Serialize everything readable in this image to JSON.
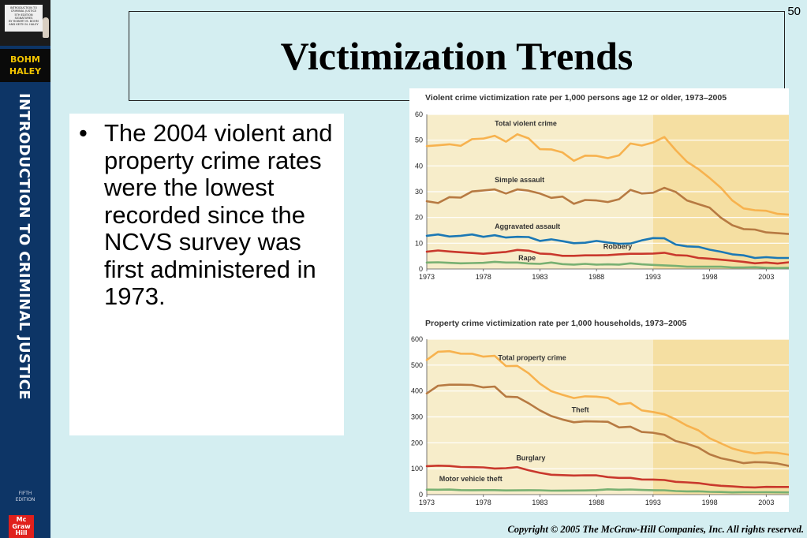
{
  "sidebar": {
    "cover_lines": [
      "INTRODUCTION TO",
      "CRIMINAL JUSTICE",
      "5TH EDITION",
      "SIGNATURES",
      "BY ROBERT M. BOHM",
      "AND KEITH N. HALEY"
    ],
    "authors_line1": "BOHM",
    "authors_line2": "HALEY",
    "vertical_title": "INTRODUCTION TO CRIMINAL JUSTICE",
    "edition_line1": "FIFTH",
    "edition_line2": "EDITION",
    "publisher_logo": [
      "Mc",
      "Graw",
      "Hill"
    ]
  },
  "slide": {
    "number": "50",
    "title": "Victimization Trends",
    "bullet": "The 2004 violent and property crime rates were the lowest recorded since the NCVS survey was first administered in 1973.",
    "copyright": "Copyright © 2005 The McGraw-Hill Companies, Inc. All rights reserved."
  },
  "colors": {
    "sidebar": "#0d3566",
    "background": "#d4eef1",
    "plot_light": "#f7edca",
    "plot_dark": "#f5dfa2",
    "total": "#f7b24e",
    "second": "#b77a42",
    "third": "#1b78b5",
    "fourth": "#c9382c",
    "fifth": "#78b072"
  },
  "chart_data": [
    {
      "type": "line",
      "title": "Violent crime victimization rate per 1,000 persons age 12 or older, 1973–2005",
      "xlabel": "",
      "ylabel": "",
      "xlim": [
        1973,
        2005
      ],
      "ylim": [
        0,
        60
      ],
      "yticks": [
        0,
        10,
        20,
        30,
        40,
        50,
        60
      ],
      "xticks": [
        1973,
        1978,
        1983,
        1988,
        1993,
        1998,
        2003
      ],
      "shaded_from": 1993,
      "grid": true,
      "x": [
        1973,
        1974,
        1975,
        1976,
        1977,
        1978,
        1979,
        1980,
        1981,
        1982,
        1983,
        1984,
        1985,
        1986,
        1987,
        1988,
        1989,
        1990,
        1991,
        1992,
        1993,
        1994,
        1995,
        1996,
        1997,
        1998,
        1999,
        2000,
        2001,
        2002,
        2003,
        2004,
        2005
      ],
      "series": [
        {
          "name": "Total violent crime",
          "color_key": "total",
          "label_at": [
            1979,
            55.5
          ],
          "values": [
            47.7,
            48.0,
            48.4,
            47.8,
            50.4,
            50.6,
            51.7,
            49.4,
            52.3,
            50.7,
            46.5,
            46.4,
            45.2,
            42.0,
            44.0,
            43.9,
            43.0,
            44.1,
            48.7,
            47.9,
            49.1,
            51.2,
            46.1,
            41.6,
            38.8,
            35.3,
            31.5,
            26.6,
            23.5,
            22.8,
            22.6,
            21.4,
            21.1
          ]
        },
        {
          "name": "Simple assault",
          "color_key": "second",
          "label_at": [
            1979,
            33.6
          ],
          "values": [
            26.3,
            25.6,
            27.9,
            27.7,
            30.1,
            30.5,
            30.9,
            29.3,
            30.9,
            30.4,
            29.3,
            27.6,
            28.1,
            25.3,
            26.8,
            26.6,
            26.0,
            27.1,
            30.7,
            29.3,
            29.6,
            31.5,
            29.9,
            26.6,
            25.2,
            23.8,
            19.9,
            17.0,
            15.5,
            15.3,
            14.2,
            13.9,
            13.6
          ]
        },
        {
          "name": "Aggravated assault",
          "color_key": "third",
          "label_at": [
            1979,
            15.6
          ],
          "values": [
            12.9,
            13.4,
            12.6,
            12.9,
            13.4,
            12.5,
            13.1,
            12.2,
            12.5,
            12.4,
            10.9,
            11.5,
            10.8,
            10.0,
            10.2,
            10.9,
            10.3,
            9.8,
            9.9,
            11.1,
            12.0,
            11.9,
            9.5,
            8.8,
            8.6,
            7.5,
            6.7,
            5.7,
            5.3,
            4.3,
            4.6,
            4.3,
            4.3
          ]
        },
        {
          "name": "Robbery",
          "color_key": "fourth",
          "label_at": [
            1988.6,
            7.8
          ],
          "values": [
            6.7,
            7.2,
            6.8,
            6.5,
            6.2,
            5.9,
            6.3,
            6.6,
            7.4,
            7.1,
            6.0,
            5.8,
            5.1,
            5.1,
            5.3,
            5.3,
            5.4,
            5.7,
            5.9,
            5.9,
            6.0,
            6.3,
            5.4,
            5.2,
            4.3,
            4.0,
            3.6,
            3.2,
            2.8,
            2.2,
            2.5,
            2.1,
            2.6
          ]
        },
        {
          "name": "Rape",
          "color_key": "fifth",
          "label_at": [
            1981.1,
            3.4
          ],
          "values": [
            2.5,
            2.6,
            2.4,
            2.2,
            2.3,
            2.4,
            2.8,
            2.5,
            2.5,
            2.1,
            2.0,
            2.5,
            1.9,
            1.7,
            2.0,
            1.7,
            1.8,
            1.7,
            2.2,
            1.8,
            1.6,
            1.4,
            1.2,
            0.9,
            0.9,
            0.9,
            0.9,
            0.6,
            0.6,
            0.7,
            0.5,
            0.4,
            0.5
          ]
        }
      ]
    },
    {
      "type": "line",
      "title": "Property crime victimization rate per 1,000 households, 1973–2005",
      "xlabel": "",
      "ylabel": "",
      "xlim": [
        1973,
        2005
      ],
      "ylim": [
        0,
        600
      ],
      "yticks": [
        0,
        100,
        200,
        300,
        400,
        500,
        600
      ],
      "xticks": [
        1973,
        1978,
        1983,
        1988,
        1993,
        1998,
        2003
      ],
      "shaded_from": 1993,
      "grid": true,
      "x": [
        1973,
        1974,
        1975,
        1976,
        1977,
        1978,
        1979,
        1980,
        1981,
        1982,
        1983,
        1984,
        1985,
        1986,
        1987,
        1988,
        1989,
        1990,
        1991,
        1992,
        1993,
        1994,
        1995,
        1996,
        1997,
        1998,
        1999,
        2000,
        2001,
        2002,
        2003,
        2004,
        2005
      ],
      "series": [
        {
          "name": "Total property crime",
          "color_key": "total",
          "label_at": [
            1979.3,
            520
          ],
          "values": [
            519.9,
            551.5,
            553.6,
            544.2,
            544.1,
            532.6,
            535.7,
            496.1,
            497.2,
            468.3,
            428.4,
            399.2,
            385.4,
            372.7,
            379.6,
            378.4,
            373.4,
            348.9,
            353.7,
            325.3,
            318.9,
            310.2,
            290.5,
            266.3,
            248.3,
            217.4,
            198.0,
            178.1,
            166.9,
            159.0,
            163.2,
            161.1,
            154.0
          ]
        },
        {
          "name": "Theft",
          "color_key": "second",
          "label_at": [
            1985.8,
            318
          ],
          "values": [
            390.8,
            420.2,
            424.4,
            424.2,
            423.4,
            414.0,
            417.3,
            378.3,
            376.5,
            352.7,
            325.4,
            303.5,
            289.8,
            279.4,
            282.9,
            282.3,
            281.2,
            259.4,
            262.3,
            241.9,
            238.7,
            230.8,
            206.9,
            196.3,
            181.4,
            155.5,
            140.3,
            131.5,
            121.5,
            125.4,
            124.4,
            120.0,
            111.0
          ]
        },
        {
          "name": "Burglary",
          "color_key": "fourth",
          "label_at": [
            1980.9,
            132
          ],
          "values": [
            110.0,
            111.8,
            110.5,
            106.6,
            106.0,
            105.2,
            100.7,
            101.9,
            105.9,
            94.1,
            84.0,
            76.9,
            75.2,
            73.8,
            74.6,
            74.3,
            67.7,
            64.5,
            64.6,
            58.6,
            58.2,
            56.3,
            49.3,
            47.2,
            44.6,
            38.5,
            34.1,
            31.8,
            28.7,
            27.7,
            29.8,
            29.6,
            29.5
          ]
        },
        {
          "name": "Motor vehicle theft",
          "color_key": "fifth",
          "label_at": [
            1974.1,
            52
          ],
          "values": [
            19.1,
            18.8,
            19.5,
            17.5,
            17.0,
            17.5,
            17.5,
            16.2,
            16.3,
            17.1,
            16.7,
            15.2,
            15.4,
            15.7,
            16.0,
            17.5,
            20.4,
            19.0,
            19.9,
            18.1,
            17.0,
            16.7,
            13.7,
            12.6,
            12.8,
            10.7,
            10.0,
            8.6,
            9.3,
            9.0,
            9.5,
            8.8,
            8.4
          ]
        }
      ]
    }
  ]
}
